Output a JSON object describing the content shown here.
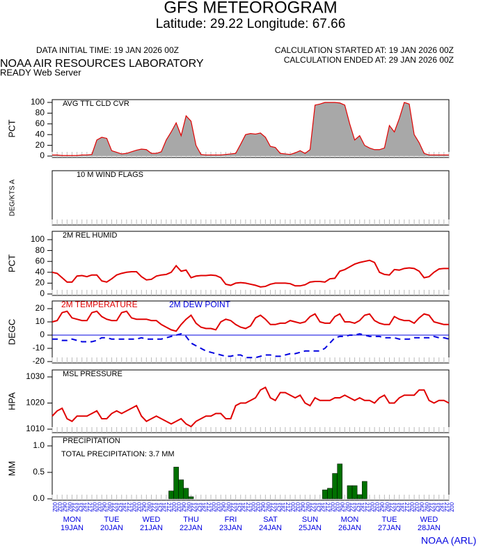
{
  "header": {
    "title": "GFS METEOROGRAM",
    "subtitle": "Latitude: 29.22 Longitude:  67.66",
    "data_initial": "DATA INITIAL TIME: 19 JAN 2026 00Z",
    "calc_started": "CALCULATION STARTED AT: 19 JAN 2026 00Z",
    "calc_ended": "CALCULATION ENDED AT: 29 JAN 2026 00Z",
    "lab": "NOAA AIR RESOURCES LABORATORY",
    "server": "READY Web Server"
  },
  "footer": "NOAA (ARL)",
  "chart_data": [
    {
      "type": "area",
      "title": "AVG TTL CLD CVR",
      "ylabel": "PCT",
      "ylim": [
        0,
        100
      ],
      "yticks": [
        0,
        20,
        40,
        60,
        80,
        100
      ],
      "color": "#a8a8a8",
      "line_color": "#e00000",
      "values": [
        2,
        2,
        1,
        1,
        1,
        1,
        2,
        2,
        3,
        30,
        35,
        33,
        10,
        7,
        4,
        5,
        8,
        11,
        13,
        12,
        5,
        5,
        8,
        30,
        45,
        62,
        38,
        75,
        65,
        20,
        3,
        2,
        2,
        2,
        2,
        3,
        4,
        5,
        22,
        40,
        42,
        41,
        43,
        35,
        18,
        16,
        5,
        4,
        3,
        6,
        10,
        5,
        12,
        95,
        97,
        100,
        100,
        100,
        99,
        95,
        60,
        30,
        38,
        20,
        15,
        12,
        12,
        15,
        57,
        45,
        70,
        100,
        97,
        40,
        25,
        5,
        2,
        2,
        2,
        2,
        2
      ]
    },
    {
      "type": "wind",
      "title": "10 M  WIND FLAGS",
      "ylabel": "DEG/KTS A"
    },
    {
      "type": "line",
      "title": "2M REL HUMID",
      "ylabel": "PCT",
      "ylim": [
        0,
        100
      ],
      "yticks": [
        0,
        20,
        40,
        60,
        80,
        100
      ],
      "series": [
        {
          "color": "#e00000",
          "values": [
            40,
            38,
            30,
            22,
            22,
            33,
            34,
            32,
            35,
            35,
            24,
            22,
            28,
            35,
            38,
            40,
            41,
            41,
            32,
            26,
            27,
            33,
            35,
            36,
            40,
            52,
            42,
            44,
            30,
            33,
            34,
            34,
            35,
            34,
            30,
            18,
            16,
            20,
            21,
            20,
            18,
            16,
            13,
            14,
            18,
            20,
            20,
            20,
            19,
            15,
            15,
            17,
            22,
            23,
            23,
            22,
            28,
            29,
            42,
            45,
            50,
            55,
            58,
            60,
            62,
            58,
            40,
            36,
            35,
            45,
            44,
            47,
            48,
            47,
            42,
            30,
            32,
            40,
            46,
            47,
            47
          ]
        }
      ]
    },
    {
      "type": "line",
      "ylabel": "DEGC",
      "ylim": [
        -20,
        20
      ],
      "yticks": [
        -20,
        -10,
        0,
        10,
        20
      ],
      "zero_line": true,
      "series": [
        {
          "name": "2M TEMPERATURE",
          "color": "#e00000",
          "values": [
            10,
            11,
            17,
            18,
            13,
            12,
            11,
            11,
            17,
            18,
            14,
            12,
            11,
            11,
            17,
            18,
            13,
            12,
            12,
            12,
            11,
            11,
            8,
            6,
            4,
            3,
            8,
            12,
            15,
            9,
            6,
            5,
            5,
            4,
            10,
            12,
            11,
            8,
            6,
            5,
            7,
            13,
            15,
            12,
            8,
            8,
            9,
            9,
            11,
            10,
            9,
            10,
            14,
            16,
            10,
            9,
            9,
            14,
            16,
            10,
            10,
            9,
            11,
            15,
            16,
            11,
            9,
            8,
            8,
            14,
            12,
            11,
            11,
            9,
            13,
            16,
            15,
            10,
            9,
            8,
            8
          ]
        },
        {
          "name": "2M  DEW POINT",
          "color": "#0000e0",
          "dashed": true,
          "values": [
            -3,
            -3,
            -4,
            -4,
            -3,
            -4,
            -5,
            -5,
            -5,
            -4,
            -2,
            -2,
            -3,
            -3,
            -3,
            -3,
            -3,
            -3,
            -2,
            -3,
            -3,
            -3,
            -3,
            -2,
            -1,
            0,
            1,
            -1,
            -6,
            -8,
            -10,
            -12,
            -13,
            -14,
            -15,
            -16,
            -16,
            -15,
            -15,
            -17,
            -17,
            -17,
            -16,
            -15,
            -15,
            -16,
            -16,
            -15,
            -14,
            -14,
            -13,
            -12,
            -12,
            -12,
            -12,
            -10,
            -6,
            -2,
            -1,
            -1,
            0,
            0,
            1,
            0,
            -1,
            -1,
            -1,
            -2,
            -2,
            -2,
            -3,
            -3,
            -3,
            -2,
            -2,
            -2,
            -2,
            -1,
            -2,
            -2,
            -3
          ]
        }
      ]
    },
    {
      "type": "line",
      "title": "MSL PRESSURE",
      "ylabel": "HPA",
      "ylim": [
        1010,
        1030
      ],
      "yticks": [
        1010,
        1020,
        1030
      ],
      "series": [
        {
          "color": "#e00000",
          "values": [
            1015,
            1017,
            1018,
            1014,
            1013,
            1015,
            1015,
            1015,
            1016,
            1017,
            1014,
            1014,
            1016,
            1017,
            1016,
            1017,
            1018,
            1019,
            1015,
            1013,
            1014,
            1015,
            1014,
            1013,
            1012,
            1013,
            1014,
            1012,
            1011,
            1013,
            1014,
            1015,
            1015,
            1016,
            1016,
            1014,
            1014,
            1019,
            1020,
            1020,
            1021,
            1022,
            1025,
            1026,
            1022,
            1021,
            1024,
            1024,
            1023,
            1022,
            1023,
            1020,
            1019,
            1022,
            1021,
            1021,
            1021,
            1022,
            1022,
            1023,
            1022,
            1021,
            1022,
            1021,
            1021,
            1020,
            1022,
            1023,
            1020,
            1020,
            1022,
            1023,
            1023,
            1023,
            1025,
            1025,
            1021,
            1020,
            1021,
            1021,
            1020
          ]
        }
      ]
    },
    {
      "type": "bar",
      "title": "PRECIPITATION",
      "annotation": "TOTAL PRECIPITATION:  3.7 MM",
      "ylabel": "MM",
      "ylim": [
        0,
        1
      ],
      "yticks": [
        {
          "value": 0,
          "label": "0.0"
        },
        0.5,
        {
          "value": 1,
          "label": "1.0"
        }
      ],
      "color": "#007000",
      "values": [
        0,
        0,
        0,
        0,
        0,
        0,
        0,
        0,
        0,
        0,
        0,
        0,
        0,
        0,
        0,
        0,
        0,
        0,
        0,
        0,
        0,
        0,
        0,
        0,
        0.15,
        0.6,
        0.36,
        0.2,
        0.04,
        0,
        0,
        0,
        0,
        0,
        0,
        0,
        0,
        0,
        0,
        0,
        0,
        0,
        0,
        0,
        0,
        0,
        0,
        0,
        0,
        0,
        0,
        0,
        0,
        0,
        0,
        0.17,
        0.2,
        0.48,
        0.66,
        0,
        0.25,
        0.25,
        0.08,
        0.33,
        0,
        0,
        0,
        0,
        0,
        0,
        0,
        0,
        0,
        0,
        0,
        0,
        0,
        0,
        0,
        0,
        0
      ],
      "x": [
        "00Z",
        "03Z",
        "06Z",
        "09Z",
        "12Z",
        "15Z",
        "18Z",
        "21Z",
        "00Z",
        "03Z",
        "06Z",
        "09Z",
        "12Z",
        "15Z",
        "18Z",
        "21Z",
        "00Z",
        "03Z",
        "06Z",
        "09Z",
        "12Z",
        "15Z",
        "18Z",
        "21Z",
        "00Z",
        "03Z",
        "06Z",
        "09Z",
        "12Z",
        "15Z",
        "18Z",
        "21Z",
        "00Z",
        "03Z",
        "06Z",
        "09Z",
        "12Z",
        "15Z",
        "18Z",
        "21Z",
        "00Z",
        "03Z",
        "06Z",
        "09Z",
        "12Z",
        "15Z",
        "18Z",
        "21Z",
        "00Z",
        "03Z",
        "06Z",
        "09Z",
        "12Z",
        "15Z",
        "18Z",
        "21Z",
        "00Z",
        "03Z",
        "06Z",
        "09Z",
        "12Z",
        "15Z",
        "18Z",
        "21Z",
        "00Z",
        "03Z",
        "06Z",
        "09Z",
        "12Z",
        "15Z",
        "18Z",
        "21Z",
        "00Z",
        "03Z",
        "06Z",
        "09Z",
        "12Z",
        "15Z",
        "18Z",
        "21Z",
        "00Z"
      ],
      "days": [
        {
          "weekday": "MON",
          "date": "19JAN"
        },
        {
          "weekday": "TUE",
          "date": "20JAN"
        },
        {
          "weekday": "WED",
          "date": "21JAN"
        },
        {
          "weekday": "THU",
          "date": "22JAN"
        },
        {
          "weekday": "FRI",
          "date": "23JAN"
        },
        {
          "weekday": "SAT",
          "date": "24JAN"
        },
        {
          "weekday": "SUN",
          "date": "25JAN"
        },
        {
          "weekday": "MON",
          "date": "26JAN"
        },
        {
          "weekday": "TUE",
          "date": "27JAN"
        },
        {
          "weekday": "WED",
          "date": "28JAN"
        }
      ]
    }
  ]
}
